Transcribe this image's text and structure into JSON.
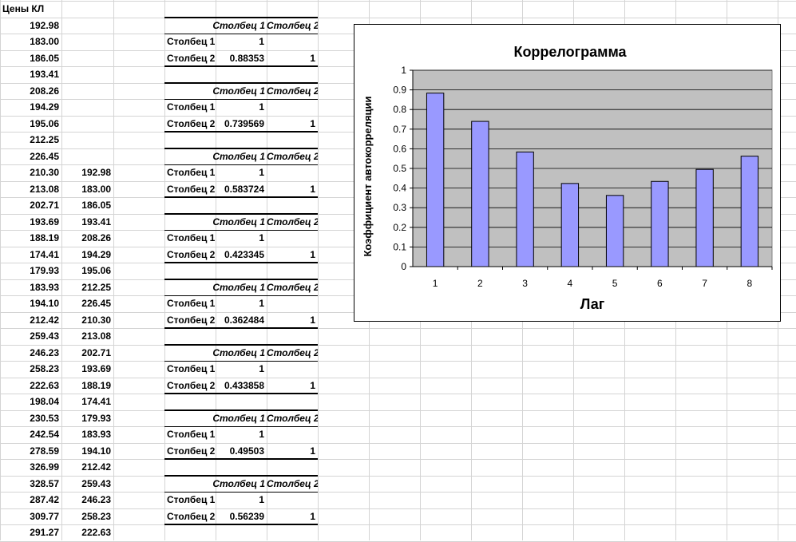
{
  "sheet": {
    "col_a_header": "Цены КЛ",
    "col_a": [
      "192.98",
      "183.00",
      "186.05",
      "193.41",
      "208.26",
      "194.29",
      "195.06",
      "212.25",
      "226.45",
      "210.30",
      "213.08",
      "202.71",
      "193.69",
      "188.19",
      "174.41",
      "179.93",
      "183.93",
      "194.10",
      "212.42",
      "259.43",
      "246.23",
      "258.23",
      "222.63",
      "198.04",
      "230.53",
      "242.54",
      "278.59",
      "326.99",
      "328.57",
      "287.42",
      "309.77",
      "291.27"
    ],
    "col_b": [
      "192.98",
      "183.00",
      "186.05",
      "193.41",
      "208.26",
      "194.29",
      "195.06",
      "212.25",
      "226.45",
      "210.30",
      "213.08",
      "202.71",
      "193.69",
      "188.19",
      "174.41",
      "179.93",
      "183.93",
      "194.10",
      "212.42",
      "259.43",
      "246.23",
      "258.23",
      "222.63"
    ],
    "corr_blocks": [
      {
        "col1": "Столбец 1",
        "col2": "Столбец 2",
        "row1_label": "Столбец 1",
        "row1_value": "1",
        "row2_label": "Столбец 2",
        "row2_value": "0.88353",
        "row2_one": "1"
      },
      {
        "col1": "Столбец 1",
        "col2": "Столбец 2",
        "row1_label": "Столбец 1",
        "row1_value": "1",
        "row2_label": "Столбец 2",
        "row2_value": "0.739569",
        "row2_one": "1"
      },
      {
        "col1": "Столбец 1",
        "col2": "Столбец 2",
        "row1_label": "Столбец 1",
        "row1_value": "1",
        "row2_label": "Столбец 2",
        "row2_value": "0.583724",
        "row2_one": "1"
      },
      {
        "col1": "Столбец 1",
        "col2": "Столбец 2",
        "row1_label": "Столбец 1",
        "row1_value": "1",
        "row2_label": "Столбец 2",
        "row2_value": "0.423345",
        "row2_one": "1"
      },
      {
        "col1": "Столбец 1",
        "col2": "Столбец 2",
        "row1_label": "Столбец 1",
        "row1_value": "1",
        "row2_label": "Столбец 2",
        "row2_value": "0.362484",
        "row2_one": "1"
      },
      {
        "col1": "Столбец 1",
        "col2": "Столбец 2",
        "row1_label": "Столбец 1",
        "row1_value": "1",
        "row2_label": "Столбец 2",
        "row2_value": "0.433858",
        "row2_one": "1"
      },
      {
        "col1": "Столбец 1",
        "col2": "Столбец 2",
        "row1_label": "Столбец 1",
        "row1_value": "1",
        "row2_label": "Столбец 2",
        "row2_value": "0.49503",
        "row2_one": "1"
      },
      {
        "col1": "Столбец 1",
        "col2": "Столбец 2",
        "row1_label": "Столбец 1",
        "row1_value": "1",
        "row2_label": "Столбец 2",
        "row2_value": "0.56239",
        "row2_one": "1"
      }
    ]
  },
  "chart_data": {
    "type": "bar",
    "title": "Коррелограмма",
    "xlabel": "Лаг",
    "ylabel": "Коэффициент автокорреляции",
    "categories": [
      "1",
      "2",
      "3",
      "4",
      "5",
      "6",
      "7",
      "8"
    ],
    "values": [
      0.88353,
      0.739569,
      0.583724,
      0.423345,
      0.362484,
      0.433858,
      0.49503,
      0.56239
    ],
    "ylim": [
      0,
      1
    ],
    "yticks": [
      "0",
      "0.1",
      "0.2",
      "0.3",
      "0.4",
      "0.5",
      "0.6",
      "0.7",
      "0.8",
      "0.9",
      "1"
    ],
    "grid": true,
    "legend": "none",
    "colors": {
      "bar": "#9999ff",
      "plot_bg": "#c0c0c0",
      "bar_edge": "#000000"
    }
  }
}
